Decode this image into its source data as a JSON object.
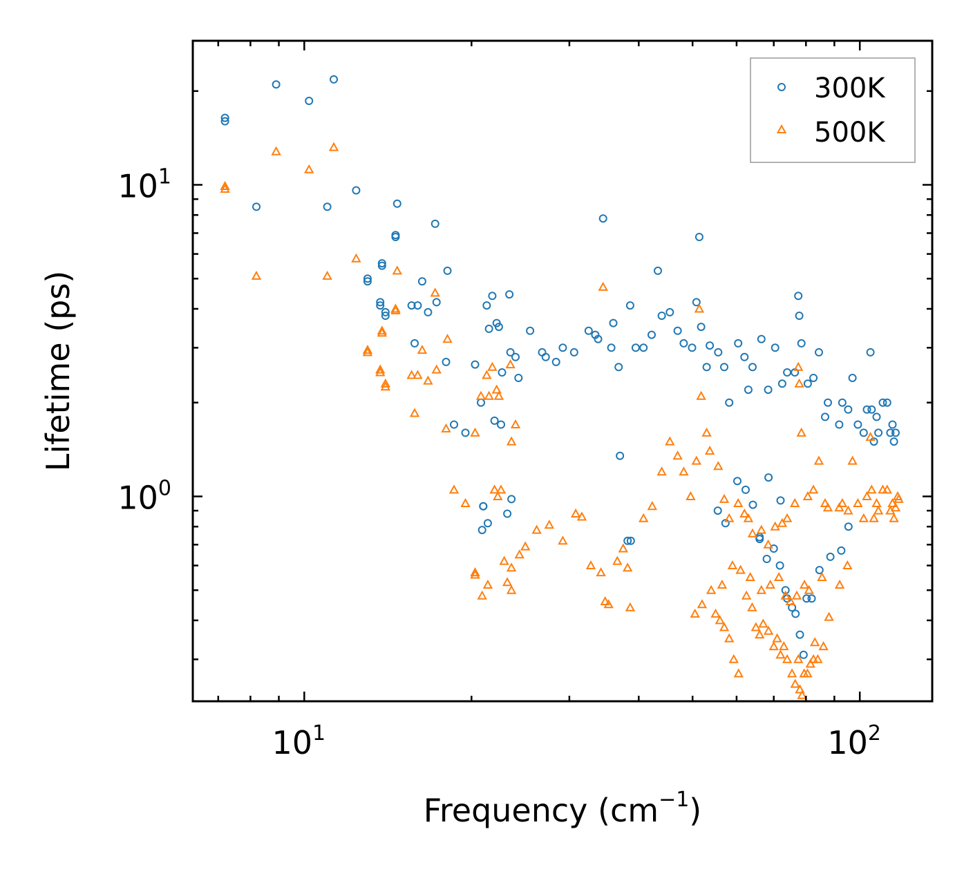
{
  "chart_data": {
    "type": "scatter",
    "xscale": "log",
    "yscale": "log",
    "xlabel": "Frequency (cm",
    "xlabel_sup": "−1",
    "xlabel_end": ")",
    "ylabel": "Lifetime (ps)",
    "xlim": [
      6.3,
      135
    ],
    "ylim": [
      0.22,
      29
    ],
    "x_ticks": [
      {
        "value": 10,
        "base": "10",
        "exp": "1"
      },
      {
        "value": 100,
        "base": "10",
        "exp": "2"
      }
    ],
    "y_ticks": [
      {
        "value": 1,
        "base": "10",
        "exp": "0"
      },
      {
        "value": 10,
        "base": "10",
        "exp": "1"
      }
    ],
    "legend_position": "top-right",
    "series": [
      {
        "name": "300K",
        "color": "#1f77b4",
        "marker": "circle",
        "points": [
          [
            7.2,
            16.4
          ],
          [
            7.2,
            16.0
          ],
          [
            8.2,
            8.5
          ],
          [
            8.9,
            21.0
          ],
          [
            10.2,
            18.6
          ],
          [
            11.0,
            8.5
          ],
          [
            11.3,
            21.8
          ],
          [
            12.4,
            9.6
          ],
          [
            13.0,
            5.0
          ],
          [
            13.0,
            4.9
          ],
          [
            13.8,
            5.6
          ],
          [
            13.8,
            5.5
          ],
          [
            14.0,
            3.9
          ],
          [
            14.0,
            3.8
          ],
          [
            13.7,
            4.2
          ],
          [
            13.7,
            4.1
          ],
          [
            14.6,
            6.9
          ],
          [
            14.6,
            6.8
          ],
          [
            14.7,
            8.7
          ],
          [
            15.6,
            4.1
          ],
          [
            15.8,
            3.1
          ],
          [
            16.0,
            4.1
          ],
          [
            16.3,
            4.9
          ],
          [
            16.7,
            3.9
          ],
          [
            17.3,
            4.2
          ],
          [
            17.2,
            7.5
          ],
          [
            18.1,
            5.3
          ],
          [
            18.0,
            2.7
          ],
          [
            18.6,
            1.7
          ],
          [
            19.5,
            1.6
          ],
          [
            20.3,
            2.65
          ],
          [
            20.8,
            2.0
          ],
          [
            21.3,
            4.1
          ],
          [
            21.5,
            3.45
          ],
          [
            21.8,
            4.4
          ],
          [
            22.2,
            3.6
          ],
          [
            22.4,
            3.5
          ],
          [
            22.7,
            2.5
          ],
          [
            23.4,
            4.45
          ],
          [
            23.5,
            2.9
          ],
          [
            21.0,
            0.93
          ],
          [
            21.0,
            0.93
          ],
          [
            20.9,
            0.78
          ],
          [
            21.4,
            0.82
          ],
          [
            22.0,
            1.75
          ],
          [
            22.6,
            1.7
          ],
          [
            23.2,
            0.88
          ],
          [
            23.6,
            0.98
          ],
          [
            24.0,
            2.8
          ],
          [
            24.3,
            2.4
          ],
          [
            25.5,
            3.4
          ],
          [
            26.8,
            2.9
          ],
          [
            27.2,
            2.8
          ],
          [
            28.4,
            2.7
          ],
          [
            29.2,
            3.0
          ],
          [
            30.6,
            2.9
          ],
          [
            32.5,
            3.4
          ],
          [
            33.4,
            3.3
          ],
          [
            33.8,
            3.2
          ],
          [
            34.5,
            7.8
          ],
          [
            35.7,
            3.0
          ],
          [
            36.0,
            3.6
          ],
          [
            36.8,
            2.6
          ],
          [
            38.6,
            4.1
          ],
          [
            38.2,
            0.72
          ],
          [
            38.7,
            0.72
          ],
          [
            37.0,
            1.35
          ],
          [
            39.5,
            3.0
          ],
          [
            40.8,
            3.0
          ],
          [
            42.2,
            3.3
          ],
          [
            43.3,
            5.3
          ],
          [
            44.0,
            3.8
          ],
          [
            45.5,
            3.9
          ],
          [
            47.0,
            3.4
          ],
          [
            48.2,
            3.1
          ],
          [
            49.9,
            3.0
          ],
          [
            50.8,
            4.2
          ],
          [
            51.4,
            6.8
          ],
          [
            51.8,
            3.5
          ],
          [
            53.0,
            2.6
          ],
          [
            53.7,
            3.05
          ],
          [
            55.6,
            2.9
          ],
          [
            57.0,
            2.6
          ],
          [
            58.2,
            2.0
          ],
          [
            60.4,
            3.1
          ],
          [
            62.0,
            2.8
          ],
          [
            63.0,
            2.2
          ],
          [
            64.1,
            2.6
          ],
          [
            66.5,
            3.2
          ],
          [
            68.4,
            2.2
          ],
          [
            70.4,
            3.0
          ],
          [
            72.5,
            2.3
          ],
          [
            74.0,
            2.5
          ],
          [
            76.4,
            2.5
          ],
          [
            77.5,
            4.4
          ],
          [
            77.8,
            3.8
          ],
          [
            78.5,
            3.1
          ],
          [
            80.6,
            2.3
          ],
          [
            82.5,
            2.4
          ],
          [
            84.4,
            2.9
          ],
          [
            86.6,
            1.8
          ],
          [
            87.6,
            2.0
          ],
          [
            91.8,
            1.7
          ],
          [
            93.0,
            2.0
          ],
          [
            95.3,
            1.9
          ],
          [
            97.0,
            2.4
          ],
          [
            99.2,
            1.7
          ],
          [
            101.6,
            1.6
          ],
          [
            103.0,
            1.9
          ],
          [
            104.5,
            2.9
          ],
          [
            105.0,
            1.9
          ],
          [
            106.0,
            1.5
          ],
          [
            107.2,
            1.8
          ],
          [
            108.0,
            1.6
          ],
          [
            110.0,
            2.0
          ],
          [
            112.0,
            2.0
          ],
          [
            113.5,
            1.6
          ],
          [
            114.5,
            1.7
          ],
          [
            115.2,
            1.5
          ],
          [
            116.0,
            1.6
          ],
          [
            66.0,
            0.74
          ],
          [
            68.0,
            0.63
          ],
          [
            70.0,
            0.68
          ],
          [
            71.8,
            0.6
          ],
          [
            73.5,
            0.5
          ],
          [
            74.0,
            0.47
          ],
          [
            75.5,
            0.44
          ],
          [
            76.6,
            0.42
          ],
          [
            78.0,
            0.36
          ],
          [
            79.2,
            0.31
          ],
          [
            80.2,
            0.47
          ],
          [
            81.9,
            0.47
          ],
          [
            84.6,
            0.58
          ],
          [
            88.5,
            0.64
          ],
          [
            92.6,
            0.67
          ],
          [
            95.4,
            0.8
          ],
          [
            55.5,
            0.9
          ],
          [
            57.3,
            0.82
          ],
          [
            60.2,
            1.12
          ],
          [
            62.3,
            1.05
          ],
          [
            64.2,
            0.94
          ],
          [
            66.0,
            0.73
          ],
          [
            68.5,
            1.15
          ],
          [
            72.0,
            0.97
          ]
        ]
      },
      {
        "name": "500K",
        "color": "#ff7f0e",
        "marker": "triangle",
        "points": [
          [
            7.2,
            9.9
          ],
          [
            7.2,
            9.7
          ],
          [
            8.2,
            5.1
          ],
          [
            8.9,
            12.8
          ],
          [
            10.2,
            11.2
          ],
          [
            11.0,
            5.1
          ],
          [
            11.3,
            13.2
          ],
          [
            12.4,
            5.8
          ],
          [
            13.0,
            2.95
          ],
          [
            13.0,
            2.9
          ],
          [
            13.8,
            3.4
          ],
          [
            13.8,
            3.35
          ],
          [
            14.0,
            2.3
          ],
          [
            14.0,
            2.25
          ],
          [
            13.7,
            2.55
          ],
          [
            13.7,
            2.5
          ],
          [
            14.6,
            4.0
          ],
          [
            14.6,
            3.95
          ],
          [
            14.7,
            5.3
          ],
          [
            15.6,
            2.45
          ],
          [
            15.8,
            1.85
          ],
          [
            16.0,
            2.45
          ],
          [
            16.3,
            2.95
          ],
          [
            16.7,
            2.35
          ],
          [
            17.3,
            2.55
          ],
          [
            17.2,
            4.5
          ],
          [
            18.1,
            3.2
          ],
          [
            18.0,
            1.65
          ],
          [
            18.6,
            1.05
          ],
          [
            19.5,
            0.95
          ],
          [
            20.3,
            1.6
          ],
          [
            20.8,
            2.1
          ],
          [
            21.3,
            2.45
          ],
          [
            21.5,
            2.1
          ],
          [
            21.8,
            2.6
          ],
          [
            22.2,
            2.2
          ],
          [
            22.4,
            2.1
          ],
          [
            23.6,
            1.5
          ],
          [
            23.5,
            2.65
          ],
          [
            24.0,
            1.7
          ],
          [
            20.3,
            0.57
          ],
          [
            20.3,
            0.56
          ],
          [
            20.9,
            0.48
          ],
          [
            21.4,
            0.52
          ],
          [
            22.0,
            1.05
          ],
          [
            22.6,
            1.05
          ],
          [
            23.2,
            0.53
          ],
          [
            23.6,
            0.5
          ],
          [
            22.3,
            1.0
          ],
          [
            22.9,
            0.62
          ],
          [
            23.6,
            0.59
          ],
          [
            24.4,
            0.65
          ],
          [
            25.0,
            0.69
          ],
          [
            26.2,
            0.78
          ],
          [
            27.6,
            0.81
          ],
          [
            29.2,
            0.72
          ],
          [
            30.8,
            0.88
          ],
          [
            31.6,
            0.86
          ],
          [
            32.8,
            0.6
          ],
          [
            34.2,
            0.57
          ],
          [
            34.8,
            0.46
          ],
          [
            35.3,
            0.45
          ],
          [
            36.6,
            0.62
          ],
          [
            37.5,
            0.68
          ],
          [
            38.6,
            0.44
          ],
          [
            38.2,
            0.59
          ],
          [
            34.5,
            4.7
          ],
          [
            40.8,
            0.85
          ],
          [
            42.3,
            0.93
          ],
          [
            44.0,
            1.2
          ],
          [
            45.5,
            1.5
          ],
          [
            47.0,
            1.35
          ],
          [
            48.2,
            1.2
          ],
          [
            49.6,
            1.0
          ],
          [
            50.8,
            1.3
          ],
          [
            51.4,
            4.0
          ],
          [
            51.8,
            2.1
          ],
          [
            53.0,
            1.6
          ],
          [
            53.7,
            1.4
          ],
          [
            55.6,
            1.25
          ],
          [
            57.0,
            0.98
          ],
          [
            58.2,
            0.85
          ],
          [
            60.4,
            0.95
          ],
          [
            62.0,
            0.88
          ],
          [
            63.0,
            0.85
          ],
          [
            64.1,
            0.76
          ],
          [
            66.5,
            0.78
          ],
          [
            68.4,
            0.7
          ],
          [
            70.4,
            0.8
          ],
          [
            72.5,
            0.82
          ],
          [
            74.0,
            0.85
          ],
          [
            76.4,
            0.95
          ],
          [
            77.5,
            2.6
          ],
          [
            77.8,
            2.3
          ],
          [
            78.5,
            1.6
          ],
          [
            80.6,
            1.0
          ],
          [
            82.5,
            1.05
          ],
          [
            84.4,
            1.3
          ],
          [
            86.6,
            0.95
          ],
          [
            87.6,
            0.92
          ],
          [
            91.8,
            0.92
          ],
          [
            93.0,
            0.95
          ],
          [
            95.3,
            0.9
          ],
          [
            97.0,
            1.3
          ],
          [
            99.2,
            0.95
          ],
          [
            101.6,
            0.85
          ],
          [
            103.0,
            1.0
          ],
          [
            104.5,
            1.55
          ],
          [
            105.0,
            1.05
          ],
          [
            106.0,
            0.85
          ],
          [
            107.2,
            0.95
          ],
          [
            108.0,
            0.9
          ],
          [
            110.0,
            1.05
          ],
          [
            112.0,
            1.05
          ],
          [
            113.5,
            0.9
          ],
          [
            114.5,
            0.95
          ],
          [
            115.2,
            0.85
          ],
          [
            116.0,
            0.92
          ],
          [
            117.0,
            1.0
          ],
          [
            117.5,
            0.98
          ],
          [
            55.0,
            0.42
          ],
          [
            56.0,
            0.4
          ],
          [
            57.0,
            0.38
          ],
          [
            58.2,
            0.35
          ],
          [
            59.3,
            0.3
          ],
          [
            60.5,
            0.27
          ],
          [
            62.5,
            0.48
          ],
          [
            64.0,
            0.44
          ],
          [
            65.0,
            0.38
          ],
          [
            66.0,
            0.36
          ],
          [
            67.0,
            0.39
          ],
          [
            68.5,
            0.37
          ],
          [
            70.0,
            0.33
          ],
          [
            71.0,
            0.35
          ],
          [
            72.0,
            0.31
          ],
          [
            73.0,
            0.33
          ],
          [
            74.0,
            0.3
          ],
          [
            75.5,
            0.27
          ],
          [
            76.5,
            0.25
          ],
          [
            77.5,
            0.3
          ],
          [
            78.0,
            0.24
          ],
          [
            78.7,
            0.23
          ],
          [
            79.4,
            0.27
          ],
          [
            80.5,
            0.27
          ],
          [
            81.5,
            0.29
          ],
          [
            82.5,
            0.3
          ],
          [
            83.0,
            0.34
          ],
          [
            84.0,
            0.3
          ],
          [
            86.0,
            0.33
          ],
          [
            88.0,
            0.41
          ],
          [
            92.0,
            0.52
          ],
          [
            95.0,
            0.6
          ],
          [
            50.5,
            0.42
          ],
          [
            52.0,
            0.45
          ],
          [
            54.0,
            0.5
          ],
          [
            56.5,
            0.52
          ],
          [
            59.0,
            0.6
          ],
          [
            61.0,
            0.58
          ],
          [
            63.5,
            0.55
          ],
          [
            66.5,
            0.5
          ],
          [
            69.0,
            0.52
          ],
          [
            71.5,
            0.55
          ],
          [
            73.5,
            0.48
          ],
          [
            75.0,
            0.46
          ],
          [
            77.0,
            0.48
          ],
          [
            79.5,
            0.52
          ],
          [
            81.0,
            0.5
          ],
          [
            85.5,
            0.55
          ]
        ]
      }
    ]
  }
}
